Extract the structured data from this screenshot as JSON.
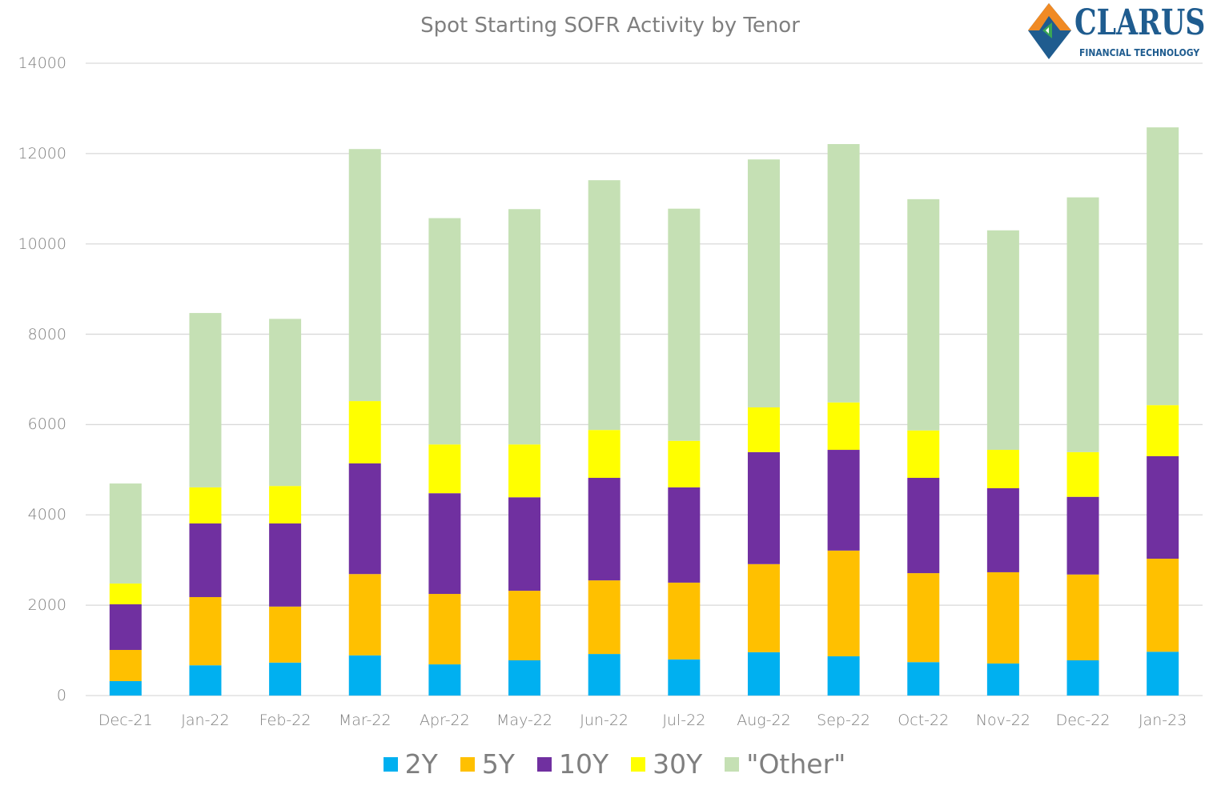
{
  "chart_data": {
    "type": "bar",
    "stacked": true,
    "title": "Spot Starting SOFR Activity by Tenor",
    "xlabel": "",
    "ylabel": "",
    "ylim": [
      0,
      14000
    ],
    "yticks": [
      0,
      2000,
      4000,
      6000,
      8000,
      10000,
      12000,
      14000
    ],
    "grid": true,
    "legend_position": "bottom",
    "categories": [
      "Dec-21",
      "Jan-22",
      "Feb-22",
      "Mar-22",
      "Apr-22",
      "May-22",
      "Jun-22",
      "Jul-22",
      "Aug-22",
      "Sep-22",
      "Oct-22",
      "Nov-22",
      "Dec-22",
      "Jan-23"
    ],
    "series": [
      {
        "name": "2Y",
        "color": "#00b0f0",
        "values": [
          320,
          670,
          730,
          890,
          690,
          780,
          920,
          800,
          960,
          870,
          740,
          710,
          780,
          970
        ]
      },
      {
        "name": "5Y",
        "color": "#ffc000",
        "values": [
          690,
          1510,
          1240,
          1800,
          1560,
          1540,
          1630,
          1700,
          1950,
          2340,
          1970,
          2020,
          1900,
          2060
        ]
      },
      {
        "name": "10Y",
        "color": "#7030a0",
        "values": [
          1010,
          1630,
          1840,
          2450,
          2230,
          2070,
          2270,
          2110,
          2480,
          2230,
          2110,
          1860,
          1720,
          2270
        ]
      },
      {
        "name": "30Y",
        "color": "#ffff00",
        "values": [
          460,
          800,
          830,
          1380,
          1080,
          1170,
          1060,
          1030,
          990,
          1050,
          1050,
          850,
          990,
          1130
        ]
      },
      {
        "name": "\"Other\"",
        "color": "#c5e0b4",
        "values": [
          2215,
          3860,
          3700,
          5580,
          5010,
          5210,
          5530,
          5140,
          5490,
          5720,
          5120,
          4860,
          5640,
          6150
        ]
      }
    ]
  },
  "logo": {
    "name": "CLARUS",
    "tagline": "FINANCIAL TECHNOLOGY",
    "color": "#1f5c8f"
  }
}
